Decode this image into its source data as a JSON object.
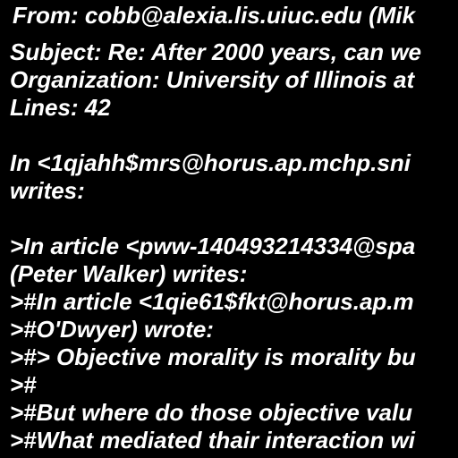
{
  "colors": {
    "background": "#000000",
    "text": "#ffffff"
  },
  "lines": [
    "From: cobb@alexia.lis.uiuc.edu (Mik",
    "Subject: Re: After 2000 years, can we",
    "Organization: University of Illinois at",
    "Lines: 42",
    "",
    "In <1qjahh$mrs@horus.ap.mchp.sni",
    "writes:",
    "",
    ">In article <pww-140493214334@spa",
    "(Peter Walker) writes:",
    ">#In article <1qie61$fkt@horus.ap.m",
    ">#O'Dwyer) wrote:",
    ">#> Objective morality is morality bu",
    ">#",
    ">#But where do those objective valu",
    ">#What mediated thair interaction wi"
  ]
}
